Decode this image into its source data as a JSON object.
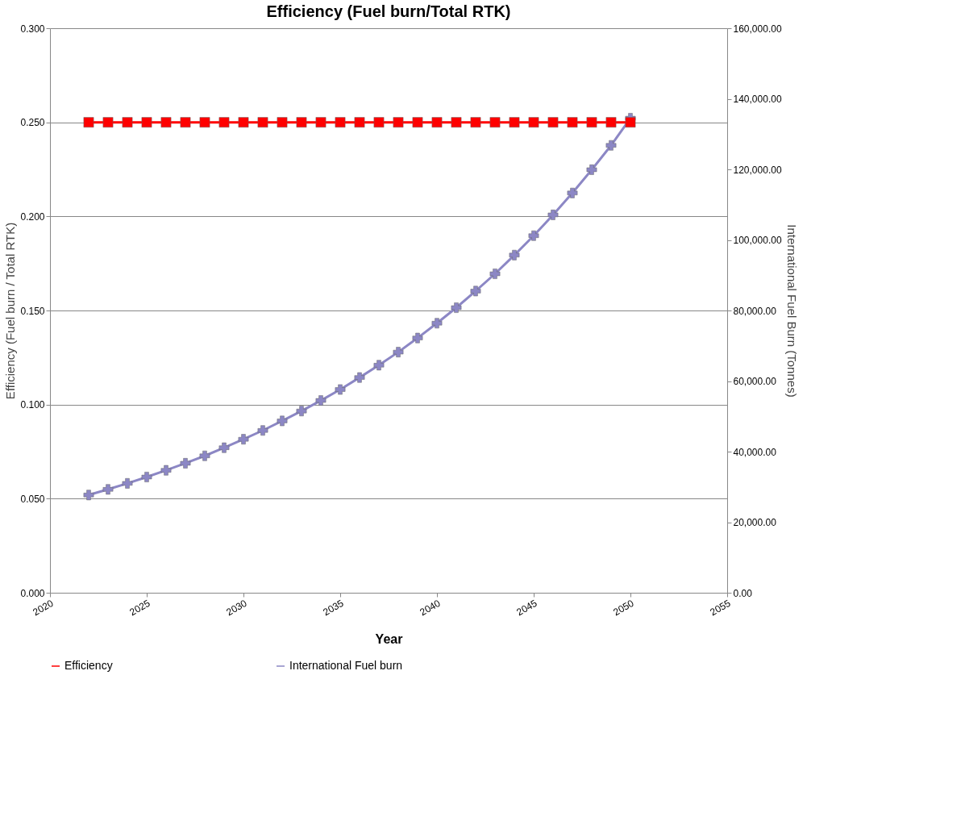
{
  "chart_data": {
    "type": "line",
    "title": "Efficiency (Fuel burn/Total RTK)",
    "xlabel": "Year",
    "ylabel": "Efficiency (Fuel burn / Total RTK)",
    "y2label": "International Fuel Burn (Tonnes)",
    "x": [
      2022,
      2023,
      2024,
      2025,
      2026,
      2027,
      2028,
      2029,
      2030,
      2031,
      2032,
      2033,
      2034,
      2035,
      2036,
      2037,
      2038,
      2039,
      2040,
      2041,
      2042,
      2043,
      2044,
      2045,
      2046,
      2047,
      2048,
      2049,
      2050
    ],
    "series": [
      {
        "name": "Efficiency",
        "color": "#ff0000",
        "marker": "square",
        "values": [
          0.25,
          0.25,
          0.25,
          0.25,
          0.25,
          0.25,
          0.25,
          0.25,
          0.25,
          0.25,
          0.25,
          0.25,
          0.25,
          0.25,
          0.25,
          0.25,
          0.25,
          0.25,
          0.25,
          0.25,
          0.25,
          0.25,
          0.25,
          0.25,
          0.25,
          0.25,
          0.25,
          0.25,
          0.25
        ]
      },
      {
        "name": "International Fuel burn",
        "color": "#8c87c5",
        "marker": "cross",
        "axis": "y2",
        "values": [
          27700,
          29300,
          31000,
          32800,
          34700,
          36700,
          38800,
          41100,
          43500,
          46000,
          48700,
          51500,
          54500,
          57600,
          61000,
          64500,
          68200,
          72200,
          76400,
          80800,
          85500,
          90400,
          95700,
          101200,
          107100,
          113300,
          119900,
          126800,
          134500
        ]
      }
    ],
    "xlim": [
      2020,
      2055
    ],
    "xticks": [
      2020,
      2025,
      2030,
      2035,
      2040,
      2045,
      2050,
      2055
    ],
    "ylim": [
      0,
      0.3
    ],
    "yticks": [
      {
        "value": 0,
        "label": "0.000"
      },
      {
        "value": 0.05,
        "label": "0.050"
      },
      {
        "value": 0.1,
        "label": "0.100"
      },
      {
        "value": 0.15,
        "label": "0.150"
      },
      {
        "value": 0.2,
        "label": "0.200"
      },
      {
        "value": 0.25,
        "label": "0.250"
      },
      {
        "value": 0.3,
        "label": "0.300"
      }
    ],
    "y2lim": [
      0,
      160000
    ],
    "y2ticks": [
      {
        "value": 0,
        "label": "0.00"
      },
      {
        "value": 20000,
        "label": "20,000.00"
      },
      {
        "value": 40000,
        "label": "40,000.00"
      },
      {
        "value": 60000,
        "label": "60,000.00"
      },
      {
        "value": 80000,
        "label": "80,000.00"
      },
      {
        "value": 100000,
        "label": "100,000.00"
      },
      {
        "value": 120000,
        "label": "120,000.00"
      },
      {
        "value": 140000,
        "label": "140,000.00"
      },
      {
        "value": 160000,
        "label": "160,000.00"
      }
    ],
    "grid": "y",
    "legend": "bottom",
    "line_style": "solid"
  }
}
